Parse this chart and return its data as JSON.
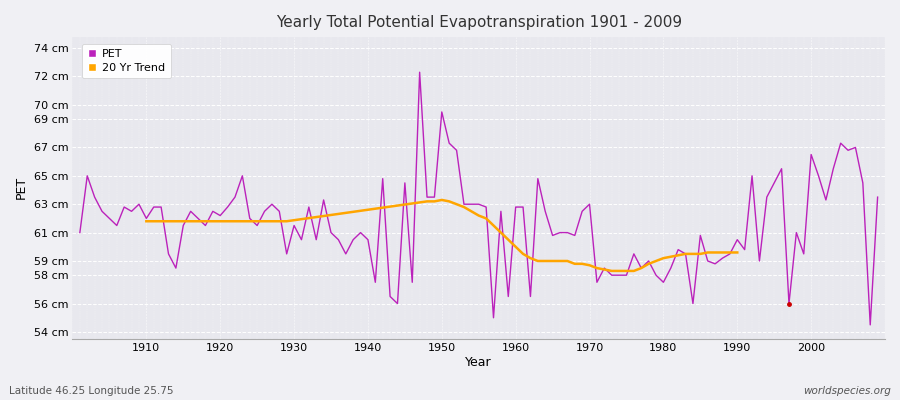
{
  "title": "Yearly Total Potential Evapotranspiration 1901 - 2009",
  "xlabel": "Year",
  "ylabel": "PET",
  "subtitle_left": "Latitude 46.25 Longitude 25.75",
  "subtitle_right": "worldspecies.org",
  "fig_bg_color": "#f0f0f4",
  "plot_bg_color": "#e8e8ee",
  "pet_color": "#bb22bb",
  "trend_color": "#ffa500",
  "dot_color": "#cc0000",
  "ylim": [
    53.5,
    74.8
  ],
  "xlim": [
    1900,
    2010
  ],
  "yticks": [
    54,
    56,
    58,
    59,
    61,
    63,
    65,
    67,
    69,
    70,
    72,
    74
  ],
  "xticks": [
    1910,
    1920,
    1930,
    1940,
    1950,
    1960,
    1970,
    1980,
    1990,
    2000
  ],
  "years": [
    1901,
    1902,
    1903,
    1904,
    1905,
    1906,
    1907,
    1908,
    1909,
    1910,
    1911,
    1912,
    1913,
    1914,
    1915,
    1916,
    1917,
    1918,
    1919,
    1920,
    1921,
    1922,
    1923,
    1924,
    1925,
    1926,
    1927,
    1928,
    1929,
    1930,
    1931,
    1932,
    1933,
    1934,
    1935,
    1936,
    1937,
    1938,
    1939,
    1940,
    1941,
    1942,
    1943,
    1944,
    1945,
    1946,
    1947,
    1948,
    1949,
    1950,
    1951,
    1952,
    1953,
    1954,
    1955,
    1956,
    1957,
    1958,
    1959,
    1960,
    1961,
    1962,
    1963,
    1964,
    1965,
    1966,
    1967,
    1968,
    1969,
    1970,
    1971,
    1972,
    1973,
    1974,
    1975,
    1976,
    1977,
    1978,
    1979,
    1980,
    1981,
    1982,
    1983,
    1984,
    1985,
    1986,
    1987,
    1988,
    1989,
    1990,
    1991,
    1992,
    1993,
    1994,
    1995,
    1996,
    1997,
    1998,
    1999,
    2000,
    2001,
    2002,
    2003,
    2004,
    2005,
    2006,
    2007,
    2008,
    2009
  ],
  "pet_values": [
    61.0,
    65.0,
    63.5,
    62.5,
    62.0,
    61.5,
    62.8,
    62.5,
    63.0,
    62.0,
    62.8,
    62.8,
    59.5,
    58.5,
    61.5,
    62.5,
    62.0,
    61.5,
    62.5,
    62.2,
    62.8,
    63.5,
    65.0,
    62.0,
    61.5,
    62.5,
    63.0,
    62.5,
    59.5,
    61.5,
    60.5,
    62.8,
    60.5,
    63.3,
    61.0,
    60.5,
    59.5,
    60.5,
    61.0,
    60.5,
    57.5,
    64.8,
    56.5,
    56.0,
    64.5,
    57.5,
    72.3,
    63.5,
    63.5,
    69.5,
    67.3,
    66.8,
    63.0,
    63.0,
    63.0,
    62.8,
    55.0,
    62.5,
    56.5,
    62.8,
    62.8,
    56.5,
    64.8,
    62.5,
    60.8,
    61.0,
    61.0,
    60.8,
    62.5,
    63.0,
    57.5,
    58.5,
    58.0,
    58.0,
    58.0,
    59.5,
    58.5,
    59.0,
    58.0,
    57.5,
    58.5,
    59.8,
    59.5,
    56.0,
    60.8,
    59.0,
    58.8,
    59.2,
    59.5,
    60.5,
    59.8,
    65.0,
    59.0,
    63.5,
    64.5,
    65.5,
    56.0,
    61.0,
    59.5,
    66.5,
    65.0,
    63.3,
    65.5,
    67.3,
    66.8,
    67.0,
    64.5,
    54.5,
    63.5
  ],
  "trend_years": [
    1910,
    1911,
    1912,
    1913,
    1914,
    1915,
    1916,
    1917,
    1918,
    1919,
    1920,
    1921,
    1922,
    1923,
    1924,
    1925,
    1926,
    1927,
    1928,
    1929,
    1948,
    1949,
    1950,
    1951,
    1952,
    1953,
    1954,
    1955,
    1956,
    1957,
    1958,
    1959,
    1960,
    1961,
    1962,
    1963,
    1964,
    1965,
    1966,
    1967,
    1968,
    1969,
    1970,
    1971,
    1972,
    1973,
    1974,
    1975,
    1976,
    1977,
    1978,
    1979,
    1980,
    1981,
    1982,
    1983,
    1984,
    1985,
    1986,
    1987,
    1988,
    1989,
    1990
  ],
  "trend_values": [
    61.8,
    61.8,
    61.8,
    61.8,
    61.8,
    61.8,
    61.8,
    61.8,
    61.8,
    61.8,
    61.8,
    61.8,
    61.8,
    61.8,
    61.8,
    61.8,
    61.8,
    61.8,
    61.8,
    61.8,
    63.2,
    63.2,
    63.3,
    63.2,
    63.0,
    62.8,
    62.5,
    62.2,
    62.0,
    61.5,
    61.0,
    60.5,
    60.0,
    59.5,
    59.2,
    59.0,
    59.0,
    59.0,
    59.0,
    59.0,
    58.8,
    58.8,
    58.7,
    58.5,
    58.4,
    58.3,
    58.3,
    58.3,
    58.3,
    58.5,
    58.8,
    59.0,
    59.2,
    59.3,
    59.4,
    59.5,
    59.5,
    59.5,
    59.6,
    59.6,
    59.6,
    59.6,
    59.6
  ],
  "dot_year": 1997,
  "dot_value": 56.0
}
